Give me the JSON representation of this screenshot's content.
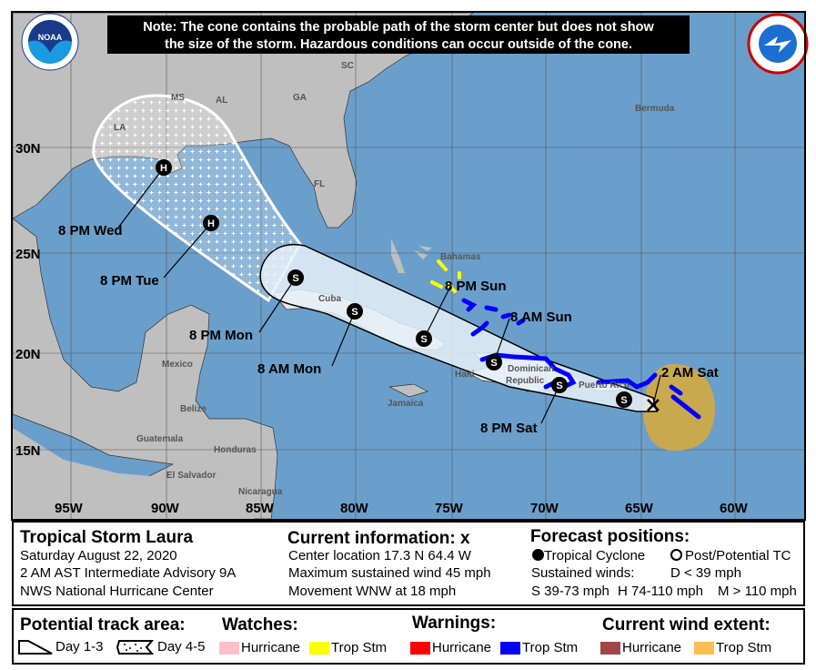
{
  "note": {
    "line1": "Note: The cone contains the probable path of the storm center but does not show",
    "line2": "the size of the storm. Hazardous conditions can occur outside of the cone."
  },
  "logos": {
    "left": "NOAA",
    "right": "National Weather Service"
  },
  "axes": {
    "lon_labels": [
      "95W",
      "90W",
      "85W",
      "80W",
      "75W",
      "70W",
      "65W",
      "60W"
    ],
    "lat_labels": [
      "30N",
      "25N",
      "20N",
      "15N"
    ]
  },
  "geo_labels": {
    "ms": "MS",
    "al": "AL",
    "ga": "GA",
    "sc": "SC",
    "la": "LA",
    "fl": "FL",
    "bermuda": "Bermuda",
    "bahamas": "Bahamas",
    "cuba": "Cuba",
    "mexico": "Mexico",
    "belize": "Belize",
    "jamaica": "Jamaica",
    "haiti": "Haiti",
    "dominican": "Dominican",
    "republic": "Republic",
    "puerto_rico": "Puerto Rico",
    "guatemala": "Guatemala",
    "honduras": "Honduras",
    "el_salvador": "El Salvador",
    "nicaragua": "Nicaragua"
  },
  "forecast_points": [
    {
      "label": "2 AM Sat",
      "symbol": "X"
    },
    {
      "label": "",
      "symbol": "S"
    },
    {
      "label": "8 PM Sat",
      "symbol": "S"
    },
    {
      "label": "8 AM Sun",
      "symbol": "S"
    },
    {
      "label": "8 PM Sun",
      "symbol": "S"
    },
    {
      "label": "8 AM Mon",
      "symbol": "S"
    },
    {
      "label": "8 PM Mon",
      "symbol": "S"
    },
    {
      "label": "8 PM Tue",
      "symbol": "H"
    },
    {
      "label": "8 PM Wed",
      "symbol": "H"
    }
  ],
  "info": {
    "storm": "Tropical Storm Laura",
    "date": "Saturday August 22, 2020",
    "advisory": "2 AM AST Intermediate Advisory 9A",
    "center": "NWS National Hurricane Center",
    "current_title": "Current information:",
    "current_symbol": "x",
    "location": "Center location 17.3 N 64.4 W",
    "wind": "Maximum sustained wind 45 mph",
    "movement": "Movement WNW at 18 mph",
    "forecast_title": "Forecast positions:",
    "tc": "Tropical Cyclone",
    "ptc": "Post/Potential TC",
    "sustained": "Sustained winds:",
    "d": "D < 39 mph",
    "s": "S 39-73 mph",
    "h": "H 74-110 mph",
    "m": "M > 110 mph"
  },
  "legend": {
    "track_title": "Potential track area:",
    "day13": "Day 1-3",
    "day45": "Day 4-5",
    "watches_title": "Watches:",
    "warnings_title": "Warnings:",
    "wind_title": "Current wind extent:",
    "hurricane": "Hurricane",
    "tropstm": "Trop Stm"
  },
  "colors": {
    "water": "#6b9fcb",
    "land": "#bfbfbf",
    "cone": "#dde9f3",
    "hurricane_watch": "#ffc0cb",
    "ts_watch": "#ffff00",
    "hurricane_warning": "#ff0000",
    "ts_warning": "#0000ff",
    "hurricane_wind": "#a04848",
    "ts_wind": "#ffbe50"
  }
}
